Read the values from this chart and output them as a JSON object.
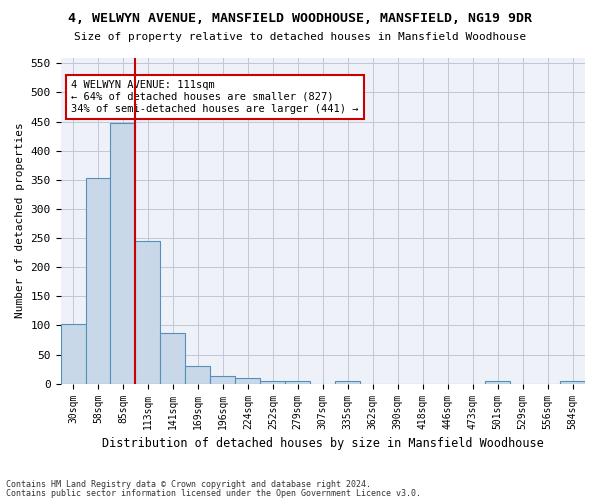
{
  "title1": "4, WELWYN AVENUE, MANSFIELD WOODHOUSE, MANSFIELD, NG19 9DR",
  "title2": "Size of property relative to detached houses in Mansfield Woodhouse",
  "xlabel": "Distribution of detached houses by size in Mansfield Woodhouse",
  "ylabel": "Number of detached properties",
  "footer1": "Contains HM Land Registry data © Crown copyright and database right 2024.",
  "footer2": "Contains public sector information licensed under the Open Government Licence v3.0.",
  "bar_labels": [
    "30sqm",
    "58sqm",
    "85sqm",
    "113sqm",
    "141sqm",
    "169sqm",
    "196sqm",
    "224sqm",
    "252sqm",
    "279sqm",
    "307sqm",
    "335sqm",
    "362sqm",
    "390sqm",
    "418sqm",
    "446sqm",
    "473sqm",
    "501sqm",
    "529sqm",
    "556sqm",
    "584sqm"
  ],
  "bar_values": [
    103,
    353,
    447,
    245,
    87,
    30,
    13,
    9,
    5,
    5,
    0,
    5,
    0,
    0,
    0,
    0,
    0,
    5,
    0,
    0,
    5
  ],
  "bar_color": "#c8d8e8",
  "bar_edge_color": "#5590bb",
  "grid_color": "#c0c8d8",
  "background_color": "#eef2f8",
  "vline_color": "#cc0000",
  "vline_pos": 2.5,
  "annotation_text": "4 WELWYN AVENUE: 111sqm\n← 64% of detached houses are smaller (827)\n34% of semi-detached houses are larger (441) →",
  "annotation_box_color": "#ffffff",
  "annotation_box_edge": "#cc0000",
  "ylim": [
    0,
    560
  ],
  "yticks": [
    0,
    50,
    100,
    150,
    200,
    250,
    300,
    350,
    400,
    450,
    500,
    550
  ]
}
